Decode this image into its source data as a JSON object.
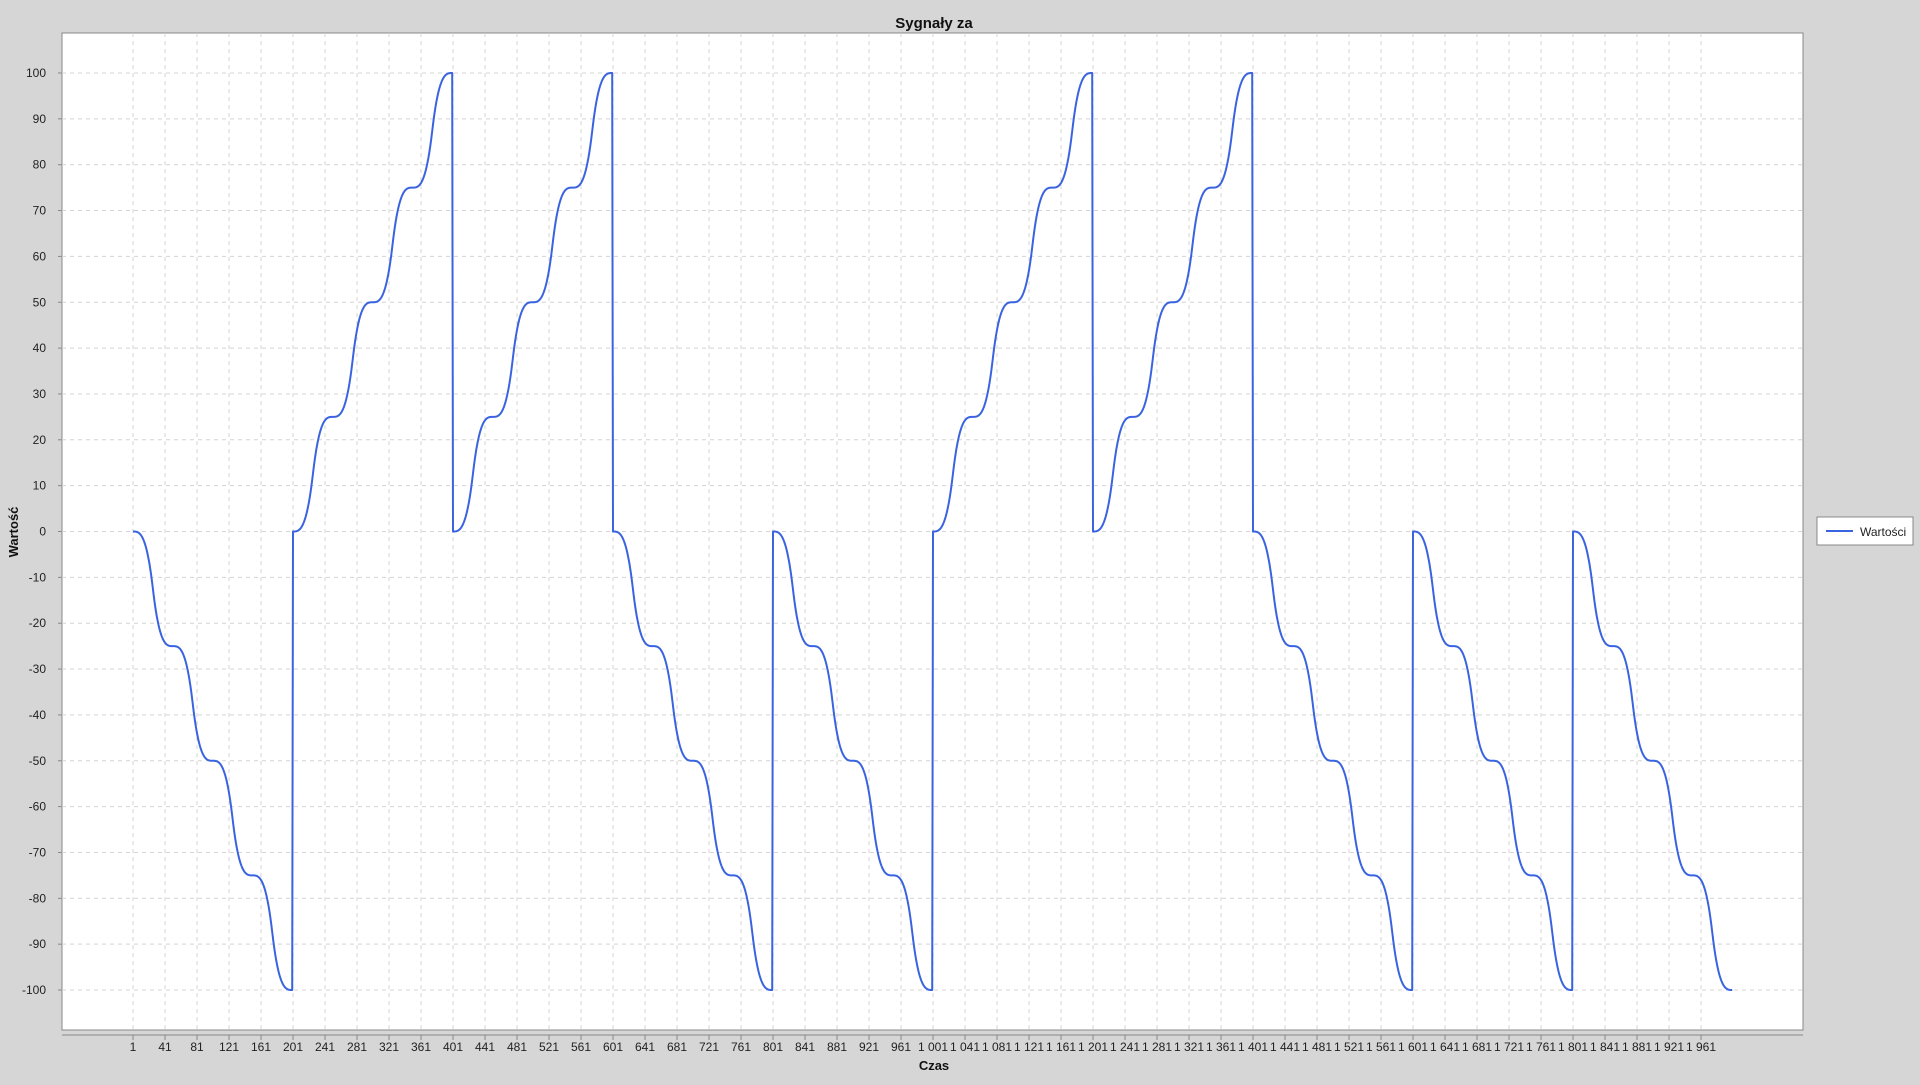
{
  "chart_data": {
    "type": "line",
    "title": "Sygnały za",
    "xlabel": "Czas",
    "ylabel": "Wartość",
    "xlim": [
      1,
      2000
    ],
    "ylim": [
      -100,
      100
    ],
    "yticks": [
      -100,
      -90,
      -80,
      -70,
      -60,
      -50,
      -40,
      -30,
      -20,
      -10,
      0,
      10,
      20,
      30,
      40,
      50,
      60,
      70,
      80,
      90,
      100
    ],
    "xticks": [
      1,
      41,
      81,
      121,
      161,
      201,
      241,
      281,
      321,
      361,
      401,
      441,
      481,
      521,
      561,
      601,
      641,
      681,
      721,
      761,
      801,
      841,
      881,
      921,
      961,
      1001,
      1041,
      1081,
      1121,
      1161,
      1201,
      1241,
      1281,
      1321,
      1361,
      1401,
      1441,
      1481,
      1521,
      1561,
      1601,
      1641,
      1681,
      1721,
      1761,
      1801,
      1841,
      1881,
      1921,
      1961
    ],
    "xtick_labels": [
      "1",
      "41",
      "81",
      "121",
      "161",
      "201",
      "241",
      "281",
      "321",
      "361",
      "401",
      "441",
      "481",
      "521",
      "561",
      "601",
      "641",
      "681",
      "721",
      "761",
      "801",
      "841",
      "881",
      "921",
      "961",
      "1 001",
      "1 041",
      "1 081",
      "1 121",
      "1 161",
      "1 201",
      "1 241",
      "1 281",
      "1 321",
      "1 361",
      "1 401",
      "1 441",
      "1 481",
      "1 521",
      "1 561",
      "1 601",
      "1 641",
      "1 681",
      "1 721",
      "1 761",
      "1 801",
      "1 841",
      "1 881",
      "1 921",
      "1 961"
    ],
    "grid": true,
    "legend_position": "right",
    "series": [
      {
        "name": "Wartości",
        "color": "#3a63e0",
        "segments": [
          {
            "x_start": 1,
            "x_end": 200,
            "direction": "down"
          },
          {
            "x_start": 201,
            "x_end": 400,
            "direction": "up"
          },
          {
            "x_start": 401,
            "x_end": 600,
            "direction": "up"
          },
          {
            "x_start": 601,
            "x_end": 800,
            "direction": "down"
          },
          {
            "x_start": 801,
            "x_end": 1000,
            "direction": "down"
          },
          {
            "x_start": 1001,
            "x_end": 1200,
            "direction": "up"
          },
          {
            "x_start": 1201,
            "x_end": 1400,
            "direction": "up"
          },
          {
            "x_start": 1401,
            "x_end": 1600,
            "direction": "down"
          },
          {
            "x_start": 1601,
            "x_end": 1800,
            "direction": "down"
          },
          {
            "x_start": 1801,
            "x_end": 2000,
            "direction": "down"
          }
        ],
        "levels": [
          0,
          25,
          50,
          75,
          100
        ]
      }
    ]
  }
}
